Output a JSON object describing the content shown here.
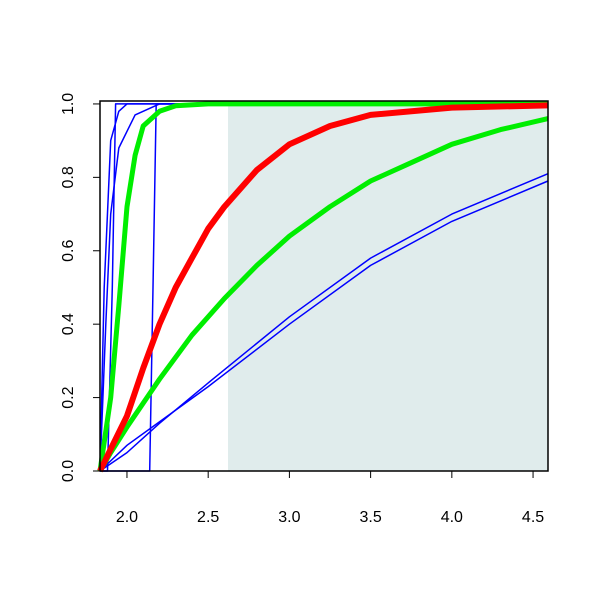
{
  "chart_data": {
    "type": "line",
    "xlim": [
      1.834,
      4.592
    ],
    "ylim": [
      0,
      1.008
    ],
    "xticks": [
      {
        "value": 2,
        "label": "2.0"
      },
      2.5,
      {
        "value": 3,
        "label": "3.0"
      },
      3.5,
      {
        "value": 4,
        "label": "4.0"
      },
      4.5
    ],
    "yticks": [
      {
        "value": 0,
        "label": "0.0"
      },
      0.2,
      0.4,
      0.6,
      0.8,
      {
        "value": 1,
        "label": "1.0"
      }
    ],
    "shade": {
      "from": 2.622,
      "color": "#e0ecec"
    },
    "series": [
      {
        "color": "#0000ff",
        "width": 1.5,
        "x": [
          1.834,
          2.0,
          2.2,
          2.5,
          3.0,
          3.5,
          4.0,
          4.592
        ],
        "values": [
          0,
          0.05,
          0.13,
          0.24,
          0.42,
          0.58,
          0.7,
          0.81
        ]
      },
      {
        "color": "#0000ff",
        "width": 1.5,
        "x": [
          1.834,
          2.0,
          2.5,
          3.0,
          3.5,
          4.0,
          4.592
        ],
        "values": [
          0,
          0.07,
          0.23,
          0.4,
          0.56,
          0.68,
          0.79
        ]
      },
      {
        "color": "#0000ff",
        "width": 1.5,
        "x": [
          1.834,
          2.14,
          2.16,
          2.18,
          4.592
        ],
        "values": [
          0,
          0,
          0.5,
          1,
          1
        ]
      },
      {
        "color": "#0000ff",
        "width": 1.5,
        "x": [
          1.834,
          1.88,
          1.91,
          1.93,
          4.592
        ],
        "values": [
          0,
          0,
          0.5,
          1,
          1
        ]
      },
      {
        "color": "#0000ff",
        "width": 1.5,
        "x": [
          1.834,
          1.86,
          1.9,
          1.95,
          2.0,
          4.592
        ],
        "values": [
          0,
          0.5,
          0.9,
          0.98,
          1,
          1
        ]
      },
      {
        "color": "#0000ff",
        "width": 1.5,
        "x": [
          1.834,
          1.87,
          1.9,
          1.95,
          2.05,
          2.2,
          4.592
        ],
        "values": [
          0,
          0.4,
          0.7,
          0.88,
          0.97,
          1,
          1
        ]
      },
      {
        "color": "#00ee00",
        "width": 5,
        "x": [
          1.834,
          1.9,
          1.95,
          2.0,
          2.05,
          2.1,
          2.2,
          2.3,
          2.5,
          4.592
        ],
        "values": [
          0,
          0.2,
          0.45,
          0.72,
          0.86,
          0.94,
          0.98,
          0.995,
          1,
          1
        ]
      },
      {
        "color": "#00ee00",
        "width": 5,
        "x": [
          1.834,
          1.9,
          2.0,
          2.2,
          2.4,
          2.6,
          2.8,
          3.0,
          3.25,
          3.5,
          3.75,
          4.0,
          4.3,
          4.592
        ],
        "values": [
          0,
          0.05,
          0.12,
          0.25,
          0.37,
          0.47,
          0.56,
          0.64,
          0.72,
          0.79,
          0.84,
          0.89,
          0.93,
          0.96
        ]
      },
      {
        "color": "#ff0000",
        "width": 6,
        "x": [
          1.834,
          1.9,
          2.0,
          2.1,
          2.2,
          2.3,
          2.4,
          2.5,
          2.6,
          2.8,
          3.0,
          3.25,
          3.5,
          4.0,
          4.592
        ],
        "values": [
          0,
          0.06,
          0.15,
          0.28,
          0.4,
          0.5,
          0.58,
          0.66,
          0.72,
          0.82,
          0.89,
          0.94,
          0.97,
          0.99,
          0.996
        ]
      }
    ]
  }
}
